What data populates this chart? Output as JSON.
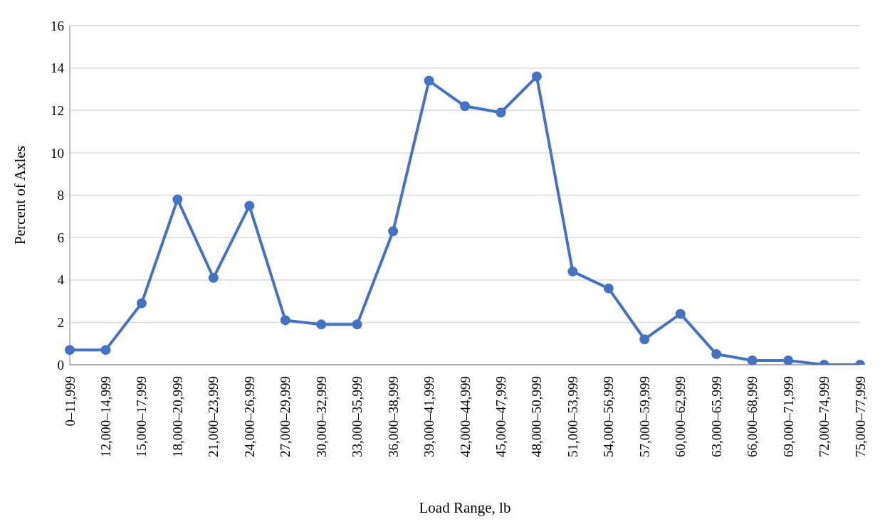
{
  "chart_data": {
    "type": "line",
    "xlabel": "Load Range, lb",
    "ylabel": "Percent of Axles",
    "categories": [
      "0–11,999",
      "12,000–14,999",
      "15,000–17,999",
      "18,000–20,999",
      "21,000–23,999",
      "24,000–26,999",
      "27,000–29,999",
      "30,000–32,999",
      "33,000–35,999",
      "36,000–38,999",
      "39,000–41,999",
      "42,000–44,999",
      "45,000–47,999",
      "48,000–50,999",
      "51,000–53,999",
      "54,000–56,999",
      "57,000–59,999",
      "60,000–62,999",
      "63,000–65,999",
      "66,000–68,999",
      "69,000–71,999",
      "72,000–74,999",
      "75,000–77,999"
    ],
    "series": [
      {
        "color": "#4472c4",
        "values": [
          0.7,
          0.7,
          2.9,
          7.8,
          4.1,
          7.5,
          2.1,
          1.9,
          1.9,
          6.3,
          13.4,
          12.2,
          11.9,
          13.6,
          4.4,
          3.6,
          1.2,
          2.4,
          0.5,
          0.2,
          0.2,
          0,
          0
        ]
      }
    ],
    "ylim": [
      0,
      16
    ],
    "yticks": [
      0,
      2,
      4,
      6,
      8,
      10,
      12,
      14,
      16
    ],
    "grid": "y",
    "marker": "circle",
    "line_style": "solid",
    "legend": false
  }
}
